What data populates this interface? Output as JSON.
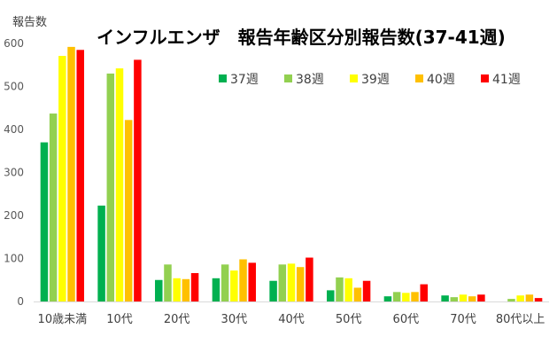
{
  "chart_data": {
    "type": "bar",
    "title": "インフルエンザ　報告年齢区分別報告数(37-41週)",
    "ylabel": "報告数",
    "xlabel": "",
    "ylim": [
      0,
      600
    ],
    "yticks": [
      0,
      100,
      200,
      300,
      400,
      500,
      600
    ],
    "grid": false,
    "legend_position": "top-right",
    "categories": [
      "10歳未満",
      "10代",
      "20代",
      "30代",
      "40代",
      "50代",
      "60代",
      "70代",
      "80代以上"
    ],
    "series": [
      {
        "name": "37週",
        "color": "#00b050",
        "values": [
          370,
          223,
          50,
          54,
          48,
          26,
          12,
          14,
          0
        ]
      },
      {
        "name": "38週",
        "color": "#92d050",
        "values": [
          437,
          530,
          86,
          86,
          86,
          56,
          22,
          10,
          6
        ]
      },
      {
        "name": "39週",
        "color": "#ffff00",
        "values": [
          571,
          542,
          54,
          72,
          88,
          54,
          20,
          16,
          14
        ]
      },
      {
        "name": "40週",
        "color": "#ffc000",
        "values": [
          592,
          422,
          52,
          98,
          80,
          32,
          22,
          12,
          16
        ]
      },
      {
        "name": "41週",
        "color": "#ff0000",
        "values": [
          585,
          562,
          66,
          90,
          102,
          48,
          40,
          16,
          8
        ]
      }
    ]
  }
}
